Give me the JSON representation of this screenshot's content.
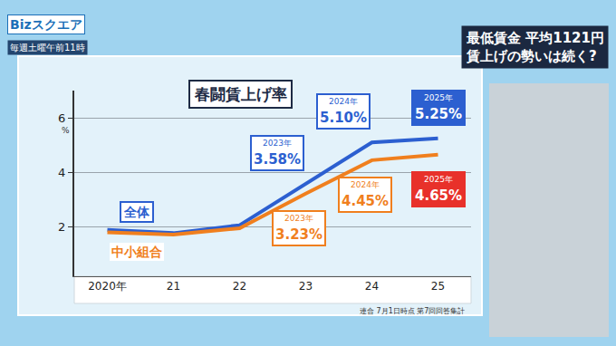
{
  "screen": {
    "program": "Bizスクエア",
    "schedule": "毎週土曜午前11時",
    "headline": [
      "最低賃金 平均1121円",
      "賃上げの勢いは続く?"
    ]
  },
  "chart_data": {
    "type": "line",
    "title": "春闘賃上げ率",
    "ylabel": "%",
    "source": "連合 7月1日時点 第7回回答集計",
    "categories": [
      "2020年",
      "21",
      "22",
      "23",
      "24",
      "25"
    ],
    "series": [
      {
        "name": "全体",
        "color": "#2c5fd0",
        "values": [
          1.9,
          1.78,
          2.07,
          3.58,
          5.1,
          5.25
        ],
        "value_labels": [
          null,
          null,
          null,
          "3.58%",
          "5.10%",
          "5.25%"
        ],
        "label_captions": [
          null,
          null,
          null,
          "2023年",
          "2024年",
          "2025年"
        ]
      },
      {
        "name": "中小組合",
        "color": "#f07f1e",
        "values": [
          1.81,
          1.73,
          1.96,
          3.23,
          4.45,
          4.65
        ],
        "value_labels": [
          null,
          null,
          null,
          "3.23%",
          "4.45%",
          "4.65%"
        ],
        "label_captions": [
          null,
          null,
          null,
          "2023年",
          "2024年",
          "2025年"
        ]
      }
    ],
    "ylim": [
      0.2,
      7
    ],
    "yticks": [
      2,
      4,
      6
    ],
    "grid": true,
    "data_labels": true
  }
}
